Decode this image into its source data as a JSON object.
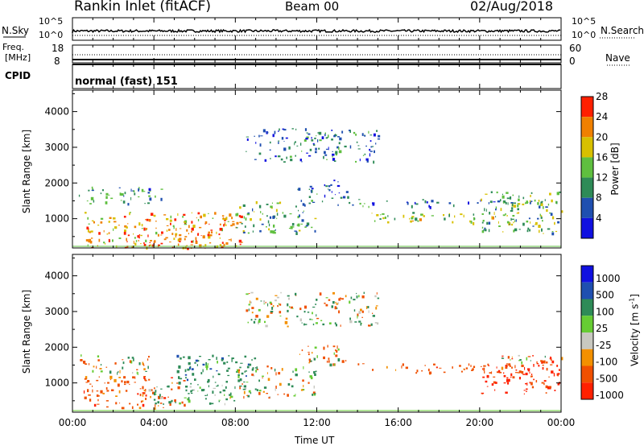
{
  "header": {
    "station": "Rankin Inlet (fitACF)",
    "beam": "Beam 00",
    "date": "02/Aug/2018"
  },
  "noise_panel": {
    "left_label": "N.Sky",
    "right_label": "N.Search",
    "left_ticks": [
      "10^5",
      "10^0"
    ],
    "right_ticks": [
      "10^5",
      "10^0"
    ]
  },
  "freq_panel": {
    "label_line1": "Freq.",
    "label_line2": "[MHz]",
    "left_ticks": [
      "18",
      "8"
    ],
    "right_label": "Nave",
    "right_ticks": [
      "60",
      "0"
    ]
  },
  "cpid": {
    "label": "CPID",
    "value": "normal (fast) 151"
  },
  "colors": {
    "power": [
      "#1010e0",
      "#1f4fb0",
      "#2e8b57",
      "#5fbf3f",
      "#d8c000",
      "#f08000",
      "#ff2000"
    ],
    "velocity": [
      "#ff2000",
      "#f05000",
      "#f39000",
      "#c8c8c0",
      "#66cc33",
      "#2e8b57",
      "#1f4fb0",
      "#1010e0"
    ]
  },
  "chart_data": [
    {
      "type": "heatmap",
      "name": "Power",
      "ylabel": "Slant Range [km]",
      "yticks": [
        1000,
        2000,
        3000,
        4000
      ],
      "ylim": [
        180,
        4600
      ],
      "xlim": [
        0,
        24
      ],
      "colorbar": {
        "label": "Power [dB]",
        "ticks": [
          "4",
          "8",
          "12",
          "16",
          "20",
          "24",
          "28"
        ],
        "range": [
          0,
          30
        ]
      },
      "regions": [
        {
          "t": [
            0.5,
            8.5
          ],
          "r": [
            200,
            1200
          ],
          "value": 22
        },
        {
          "t": [
            2.5,
            6.8
          ],
          "r": [
            180,
            650
          ],
          "value": 28
        },
        {
          "t": [
            0.3,
            4.5
          ],
          "r": [
            1400,
            1900
          ],
          "value": 10
        },
        {
          "t": [
            8.0,
            12.0
          ],
          "r": [
            600,
            1500
          ],
          "value": 12
        },
        {
          "t": [
            11.0,
            13.5
          ],
          "r": [
            1500,
            2100
          ],
          "value": 8
        },
        {
          "t": [
            13.0,
            24.0
          ],
          "r": [
            1350,
            1550
          ],
          "value": 8
        },
        {
          "t": [
            14.5,
            22.0
          ],
          "r": [
            900,
            1200
          ],
          "value": 16
        },
        {
          "t": [
            20.0,
            24.0
          ],
          "r": [
            600,
            1800
          ],
          "value": 14
        },
        {
          "t": [
            8.5,
            15.0
          ],
          "r": [
            2600,
            3550
          ],
          "value": 8
        }
      ]
    },
    {
      "type": "heatmap",
      "name": "Velocity",
      "ylabel": "Slant Range [km]",
      "yticks": [
        1000,
        2000,
        3000,
        4000
      ],
      "ylim": [
        180,
        4600
      ],
      "xlim": [
        0,
        24
      ],
      "colorbar": {
        "label": "Velocity [m s^-1]",
        "ticks": [
          "1000",
          "500",
          "100",
          "25",
          "-25",
          "-100",
          "-500",
          "-1000"
        ]
      },
      "regions": [
        {
          "t": [
            0.3,
            4.0
          ],
          "r": [
            1300,
            1800
          ],
          "value": 0
        },
        {
          "t": [
            0.5,
            5.5
          ],
          "r": [
            300,
            1200
          ],
          "value": -300
        },
        {
          "t": [
            3.5,
            8.5
          ],
          "r": [
            400,
            1000
          ],
          "value": 200
        },
        {
          "t": [
            5.0,
            9.0
          ],
          "r": [
            1000,
            1800
          ],
          "value": 300
        },
        {
          "t": [
            8.0,
            12.0
          ],
          "r": [
            600,
            1500
          ],
          "value": 0
        },
        {
          "t": [
            11.0,
            13.5
          ],
          "r": [
            1500,
            2100
          ],
          "value": -100
        },
        {
          "t": [
            14.0,
            22.0
          ],
          "r": [
            1300,
            1550
          ],
          "value": -300
        },
        {
          "t": [
            20.0,
            24.0
          ],
          "r": [
            700,
            1800
          ],
          "value": -600
        },
        {
          "t": [
            21.0,
            24.0
          ],
          "r": [
            1550,
            1800
          ],
          "value": 0
        },
        {
          "t": [
            8.5,
            15.0
          ],
          "r": [
            2600,
            3550
          ],
          "value": 50
        }
      ]
    }
  ],
  "xaxis": {
    "label": "Time UT",
    "ticks": [
      "00:00",
      "04:00",
      "08:00",
      "12:00",
      "16:00",
      "20:00",
      "00:00"
    ]
  }
}
